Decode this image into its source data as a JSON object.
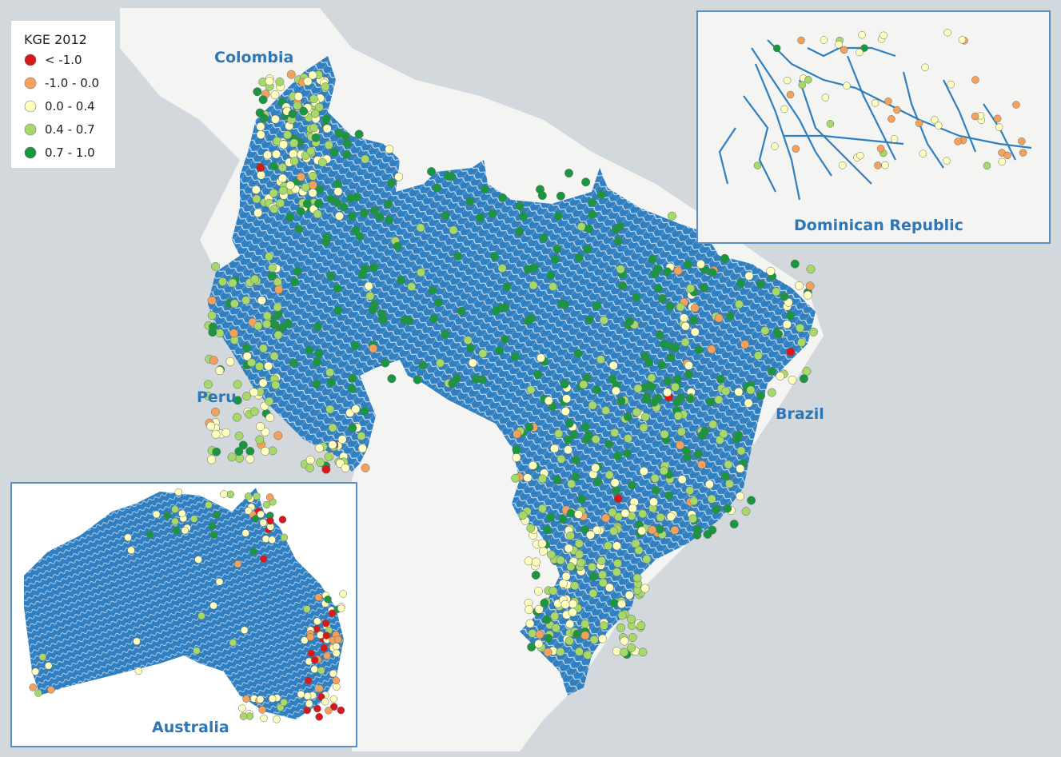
{
  "legend": {
    "title": "KGE 2012",
    "classes": [
      {
        "label": "< -1.0",
        "color": "#d7191c"
      },
      {
        "label": "-1.0 - 0.0",
        "color": "#f4a15c"
      },
      {
        "label": "0.0 - 0.4",
        "color": "#ffffbf"
      },
      {
        "label": "0.4 - 0.7",
        "color": "#a6d96a"
      },
      {
        "label": "0.7 - 1.0",
        "color": "#1a9641"
      }
    ]
  },
  "labels": {
    "colombia": "Colombia",
    "peru": "Peru",
    "brazil": "Brazil",
    "dominican_republic": "Dominican Republic",
    "australia": "Australia"
  },
  "colors": {
    "ocean": "#d3d8dc",
    "land": "#f4f4f2",
    "river_network": "#2f7fc1",
    "inset_border": "#5b8fc4"
  }
}
